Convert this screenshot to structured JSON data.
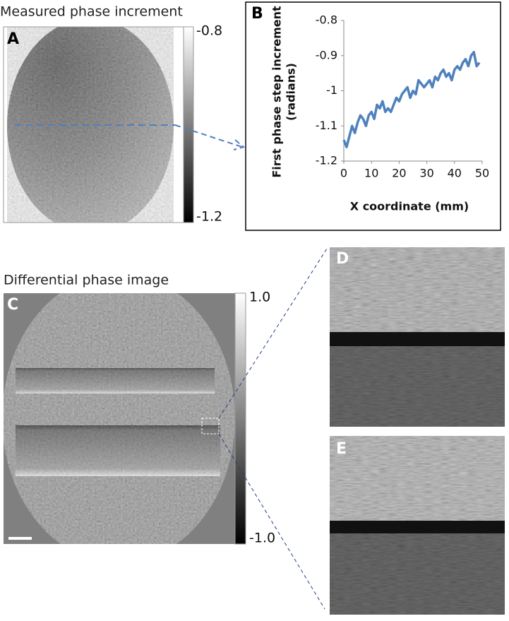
{
  "panel_a": {
    "label": "A",
    "title": "Measured phase increment",
    "colorbar": {
      "clim": [
        -1.2,
        -0.8
      ],
      "ticks": [
        -1.2,
        -0.8
      ]
    }
  },
  "chart_data": {
    "type": "line",
    "label": "B",
    "ylabel": [
      "First phase step increment",
      "(radians)"
    ],
    "xlabel": "X coordinate (mm)",
    "x": [
      0,
      1,
      2,
      3,
      4,
      5,
      6,
      7,
      8,
      9,
      10,
      11,
      12,
      13,
      14,
      15,
      16,
      17,
      18,
      19,
      20,
      21,
      22,
      23,
      24,
      25,
      26,
      27,
      28,
      29,
      30,
      31,
      32,
      33,
      34,
      35,
      36,
      37,
      38,
      39,
      40,
      41,
      42,
      43,
      44,
      45,
      46,
      47,
      48,
      49
    ],
    "series": [
      {
        "color": "#4f81bd",
        "values": [
          -1.14,
          -1.16,
          -1.13,
          -1.1,
          -1.12,
          -1.09,
          -1.07,
          -1.08,
          -1.1,
          -1.07,
          -1.06,
          -1.08,
          -1.04,
          -1.05,
          -1.03,
          -1.06,
          -1.05,
          -1.06,
          -1.04,
          -1.02,
          -1.03,
          -1.01,
          -1.0,
          -0.99,
          -1.02,
          -1.0,
          -1.01,
          -0.97,
          -0.98,
          -0.99,
          -0.98,
          -0.97,
          -0.99,
          -0.96,
          -0.97,
          -0.95,
          -0.94,
          -0.96,
          -0.95,
          -0.97,
          -0.94,
          -0.93,
          -0.94,
          -0.92,
          -0.91,
          -0.93,
          -0.9,
          -0.89,
          -0.93,
          -0.92
        ]
      }
    ],
    "xlim": [
      0,
      50
    ],
    "xticks": [
      0,
      10,
      20,
      30,
      40,
      50
    ],
    "ylim": [
      -1.2,
      -0.8
    ],
    "yticks": [
      -1.2,
      -1.1,
      -1,
      -0.9,
      -0.8
    ],
    "grid": false
  },
  "panel_c": {
    "label": "C",
    "title": "Differential phase image",
    "colorbar": {
      "clim": [
        -1,
        1
      ],
      "ticks": [
        {
          "value": 1,
          "label": "1.0"
        },
        {
          "value": -1,
          "label": "-1.0"
        }
      ]
    }
  },
  "panel_d": {
    "label": "D"
  },
  "panel_e": {
    "label": "E"
  }
}
